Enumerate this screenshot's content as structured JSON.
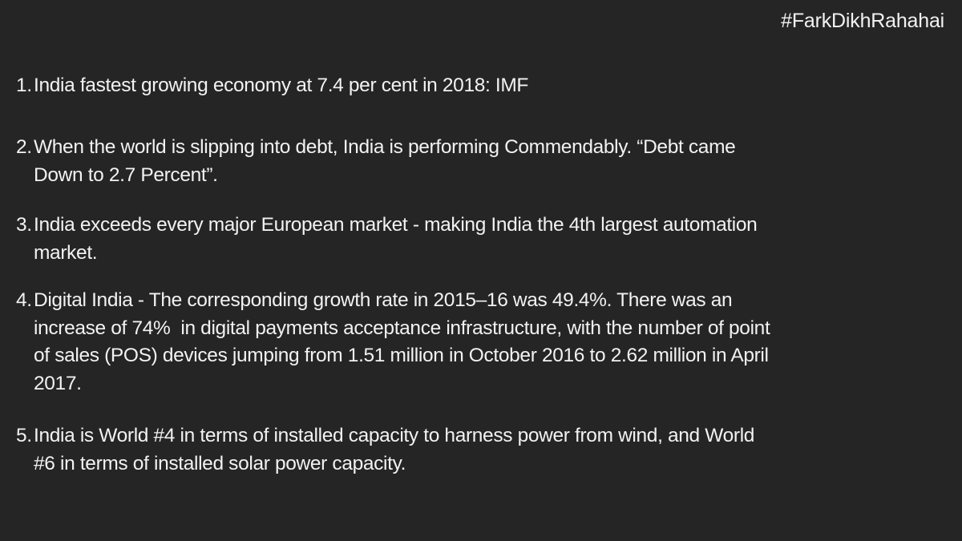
{
  "hashtag": "#FarkDikhRahahai",
  "items": [
    {
      "number": "1.",
      "lines": [
        "India fastest growing economy at 7.4 per cent in 2018: IMF"
      ]
    },
    {
      "number": "2.",
      "lines": [
        "When the world is slipping into debt, India is performing Commendably. “Debt came",
        "Down to 2.7 Percent”."
      ]
    },
    {
      "number": "3.",
      "lines": [
        "India exceeds every major European market - making India the 4th largest automation",
        "market."
      ]
    },
    {
      "number": "4.",
      "lines": [
        "Digital India - The corresponding growth rate in 2015–16 was 49.4%. There was an",
        "increase of 74%  in digital payments acceptance infrastructure, with the number of point",
        "of sales (POS) devices jumping from 1.51 million in October 2016 to 2.62 million in April",
        "2017."
      ]
    },
    {
      "number": "5.",
      "lines": [
        "India is World #4 in terms of installed capacity to harness power from wind, and World",
        "#6 in terms of installed solar power capacity."
      ]
    }
  ]
}
